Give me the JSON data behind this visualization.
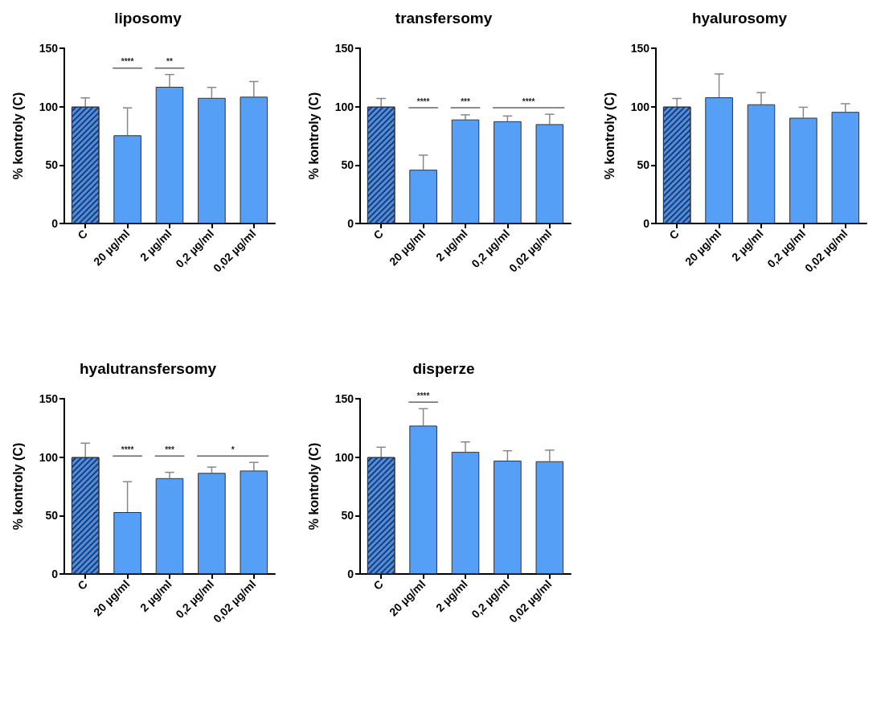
{
  "chart_data": [
    {
      "type": "bar",
      "title": "liposomy",
      "ylabel": "% kontroly (C)",
      "categories": [
        "C",
        "20 µg/ml",
        "2 µg/ml",
        "0,2 µg/ml",
        "0,02 µg/ml"
      ],
      "values": [
        100,
        75.5,
        117,
        107.5,
        108.5
      ],
      "errors": [
        [
          100,
          107.5
        ],
        [
          75.5,
          99
        ],
        [
          117,
          127.5
        ],
        [
          107.5,
          116.5
        ],
        [
          108.5,
          121.5
        ]
      ],
      "colors": [
        "#4a8ee6",
        "#559ff7",
        "#559ff7",
        "#559ff7",
        "#559ff7"
      ],
      "ylim": [
        0,
        150
      ],
      "yticks": [
        0,
        50,
        100,
        150
      ],
      "annotations": [
        "****",
        "**"
      ]
    },
    {
      "type": "bar",
      "title": "transfersomy",
      "ylabel": "% kontroly (C)",
      "categories": [
        "C",
        "20 µg/ml",
        "2 µg/ml",
        "0,2 µg/ml",
        "0,02 µg/ml"
      ],
      "values": [
        100,
        46,
        89,
        87.5,
        85
      ],
      "errors": [
        [
          100,
          107
        ],
        [
          46,
          58.5
        ],
        [
          89,
          93
        ],
        [
          87.5,
          92
        ],
        [
          85,
          93.5
        ]
      ],
      "colors": [
        "#4a8ee6",
        "#559ff7",
        "#559ff7",
        "#559ff7",
        "#559ff7"
      ],
      "ylim": [
        0,
        150
      ],
      "yticks": [
        0,
        50,
        100,
        150
      ],
      "annotations": [
        "****",
        "***",
        "****"
      ]
    },
    {
      "type": "bar",
      "title": "hyalurosomy",
      "ylabel": "% kontroly (C)",
      "categories": [
        "C",
        "20 µg/ml",
        "2 µg/ml",
        "0,2 µg/ml",
        "0,02 µg/ml"
      ],
      "values": [
        100,
        108,
        102,
        90.5,
        95.5
      ],
      "errors": [
        [
          100,
          107
        ],
        [
          108,
          128
        ],
        [
          102,
          112
        ],
        [
          90.5,
          99.5
        ],
        [
          95.5,
          102.5
        ]
      ],
      "colors": [
        "#4a8ee6",
        "#559ff7",
        "#559ff7",
        "#559ff7",
        "#559ff7"
      ],
      "ylim": [
        0,
        150
      ],
      "yticks": [
        0,
        50,
        100,
        150
      ]
    },
    {
      "type": "bar",
      "title": "hyalutransfersomy",
      "ylabel": "% kontroly (C)",
      "categories": [
        "C",
        "20 µg/ml",
        "2 µg/ml",
        "0,2 µg/ml",
        "0,02 µg/ml"
      ],
      "values": [
        100,
        53,
        82,
        86.5,
        88.5
      ],
      "errors": [
        [
          100,
          112
        ],
        [
          53,
          79
        ],
        [
          82,
          87
        ],
        [
          86.5,
          91.5
        ],
        [
          88.5,
          95.5
        ]
      ],
      "colors": [
        "#4a8ee6",
        "#559ff7",
        "#559ff7",
        "#559ff7",
        "#559ff7"
      ],
      "ylim": [
        0,
        150
      ],
      "yticks": [
        0,
        50,
        100,
        150
      ],
      "annotations": [
        "****",
        "***",
        "*"
      ]
    },
    {
      "type": "bar",
      "title": "disperze",
      "ylabel": "% kontroly (C)",
      "categories": [
        "C",
        "20 µg/ml",
        "2 µg/ml",
        "0,2 µg/ml",
        "0,02 µg/ml"
      ],
      "values": [
        100,
        127,
        104.5,
        97,
        96.5
      ],
      "errors": [
        [
          100,
          108.5
        ],
        [
          127,
          141.5
        ],
        [
          104.5,
          113
        ],
        [
          97,
          105.5
        ],
        [
          96.5,
          106
        ]
      ],
      "colors": [
        "#4a8ee6",
        "#559ff7",
        "#559ff7",
        "#559ff7",
        "#559ff7"
      ],
      "ylim": [
        0,
        150
      ],
      "yticks": [
        0,
        50,
        100,
        150
      ],
      "annotations": [
        "****"
      ]
    }
  ]
}
